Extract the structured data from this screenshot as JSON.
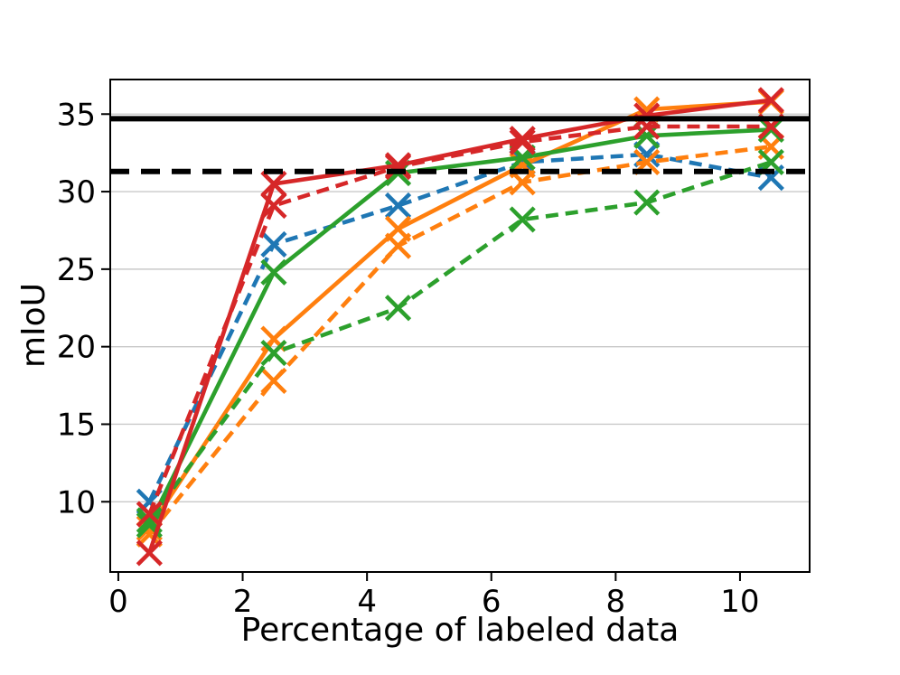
{
  "chart_data": {
    "type": "line",
    "title": "",
    "xlabel": "Percentage of labeled data",
    "ylabel": "mIoU",
    "x": [
      0.5,
      2.5,
      4.5,
      6.5,
      8.5,
      10.5
    ],
    "series": [
      {
        "name": "blue-dashed",
        "color": "#1f77b4",
        "style": "dashed",
        "marker": "x",
        "values": [
          10.0,
          26.6,
          29.1,
          31.9,
          32.4,
          30.9
        ]
      },
      {
        "name": "orange-dashed",
        "color": "#ff7f0e",
        "style": "dashed",
        "marker": "x",
        "values": [
          7.9,
          17.8,
          26.5,
          30.6,
          31.9,
          32.9
        ]
      },
      {
        "name": "orange-solid",
        "color": "#ff7f0e",
        "style": "solid",
        "marker": "x",
        "values": [
          8.3,
          20.5,
          27.6,
          31.7,
          35.3,
          35.8
        ]
      },
      {
        "name": "green-dashed",
        "color": "#2ca02c",
        "style": "dashed",
        "marker": "x",
        "values": [
          8.8,
          19.6,
          22.5,
          28.2,
          29.3,
          31.9
        ]
      },
      {
        "name": "green-solid",
        "color": "#2ca02c",
        "style": "solid",
        "marker": "x",
        "values": [
          8.5,
          24.8,
          31.2,
          32.2,
          33.6,
          34.0
        ]
      },
      {
        "name": "red-dashed",
        "color": "#d62728",
        "style": "dashed",
        "marker": "x",
        "values": [
          9.2,
          29.1,
          31.6,
          33.2,
          34.2,
          34.2
        ]
      },
      {
        "name": "red-solid",
        "color": "#d62728",
        "style": "solid",
        "marker": "x",
        "values": [
          6.7,
          30.5,
          31.7,
          33.4,
          34.9,
          35.9
        ]
      }
    ],
    "hlines": [
      {
        "name": "black-solid-hline",
        "y": 34.7,
        "color": "#000000",
        "style": "solid"
      },
      {
        "name": "black-dashed-hline",
        "y": 31.3,
        "color": "#000000",
        "style": "dashed"
      }
    ],
    "xticks": {
      "values": [
        0,
        2,
        4,
        6,
        8,
        10
      ],
      "labels": [
        "0",
        "2",
        "4",
        "6",
        "8",
        "10"
      ]
    },
    "yticks": {
      "values": [
        10,
        15,
        20,
        25,
        30,
        35
      ],
      "labels": [
        "10",
        "15",
        "20",
        "25",
        "30",
        "35"
      ]
    },
    "xlim": [
      -0.13,
      11.12
    ],
    "ylim": [
      5.47,
      37.23
    ],
    "grid": "horizontal-only",
    "grid_color": "#c9c9c9",
    "legend": "none",
    "background": "#ffffff"
  }
}
